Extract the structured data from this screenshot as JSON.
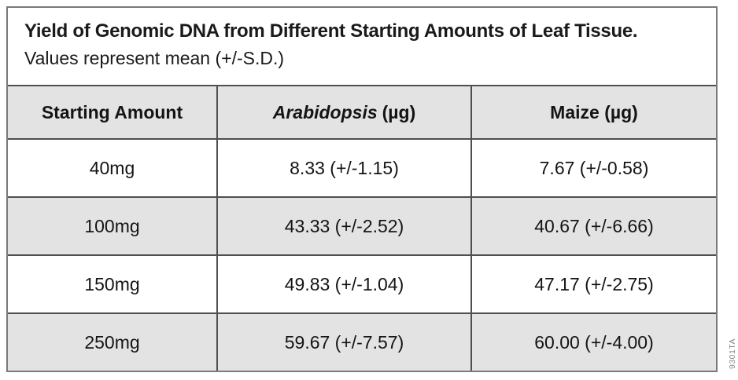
{
  "colors": {
    "row_shade": "#e3e3e3",
    "grid_line": "#4f4f4f",
    "outer_border": "#7a7a7a",
    "text": "#1a1a1a",
    "watermark_gray": "#8a8a8a"
  },
  "table": {
    "title": "Yield of Genomic DNA from Different Starting Amounts of Leaf Tissue.",
    "subtitle": "Values represent mean (+/-S.D.)",
    "header": {
      "col1": "Starting Amount",
      "col2_italic": "Arabidopsis",
      "col2_suffix": "(µg)",
      "col3": "Maize (µg)"
    },
    "rows": [
      {
        "amount": "40mg",
        "arabidopsis": "8.33 (+/-1.15)",
        "maize": "7.67 (+/-0.58)"
      },
      {
        "amount": "100mg",
        "arabidopsis": "43.33 (+/-2.52)",
        "maize": "40.67 (+/-6.66)"
      },
      {
        "amount": "150mg",
        "arabidopsis": "49.83 (+/-1.04)",
        "maize": "47.17 (+/-2.75)"
      },
      {
        "amount": "250mg",
        "arabidopsis": "59.67 (+/-7.57)",
        "maize": "60.00 (+/-4.00)"
      }
    ]
  },
  "watermark": "9301TA",
  "chart_data": {
    "type": "table",
    "title": "Yield of Genomic DNA from Different Starting Amounts of Leaf Tissue.",
    "subtitle": "Values represent mean (+/-S.D.)",
    "columns": [
      "Starting Amount",
      "Arabidopsis (µg)",
      "Maize (µg)"
    ],
    "rows": [
      [
        "40mg",
        "8.33 (+/-1.15)",
        "7.67 (+/-0.58)"
      ],
      [
        "100mg",
        "43.33 (+/-2.52)",
        "40.67 (+/-6.66)"
      ],
      [
        "150mg",
        "49.83 (+/-1.04)",
        "47.17 (+/-2.75)"
      ],
      [
        "250mg",
        "59.67 (+/-7.57)",
        "60.00 (+/-4.00)"
      ]
    ]
  }
}
